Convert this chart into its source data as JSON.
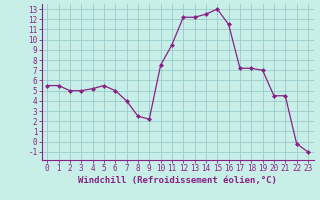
{
  "hours": [
    0,
    1,
    2,
    3,
    4,
    5,
    6,
    7,
    8,
    9,
    10,
    11,
    12,
    13,
    14,
    15,
    16,
    17,
    18,
    19,
    20,
    21,
    22,
    23
  ],
  "values": [
    5.5,
    5.5,
    5.0,
    5.0,
    5.2,
    5.5,
    5.0,
    4.0,
    2.5,
    2.2,
    7.5,
    9.5,
    12.2,
    12.2,
    12.5,
    13.0,
    11.5,
    7.2,
    7.2,
    7.0,
    4.5,
    4.5,
    -0.2,
    -1.0
  ],
  "line_color": "#882288",
  "marker": "D",
  "markersize": 2.0,
  "bg_color": "#c8eee8",
  "grid_color": "#99cccc",
  "xlabel": "Windchill (Refroidissement éolien,°C)",
  "xlabel_color": "#882288",
  "tick_color": "#882288",
  "axis_color": "#882288",
  "ylim": [
    -1.8,
    13.5
  ],
  "xlim": [
    -0.5,
    23.5
  ],
  "yticks": [
    -1,
    0,
    1,
    2,
    3,
    4,
    5,
    6,
    7,
    8,
    9,
    10,
    11,
    12,
    13
  ],
  "xticks": [
    0,
    1,
    2,
    3,
    4,
    5,
    6,
    7,
    8,
    9,
    10,
    11,
    12,
    13,
    14,
    15,
    16,
    17,
    18,
    19,
    20,
    21,
    22,
    23
  ],
  "tick_fontsize": 5.5,
  "xlabel_fontsize": 6.5
}
